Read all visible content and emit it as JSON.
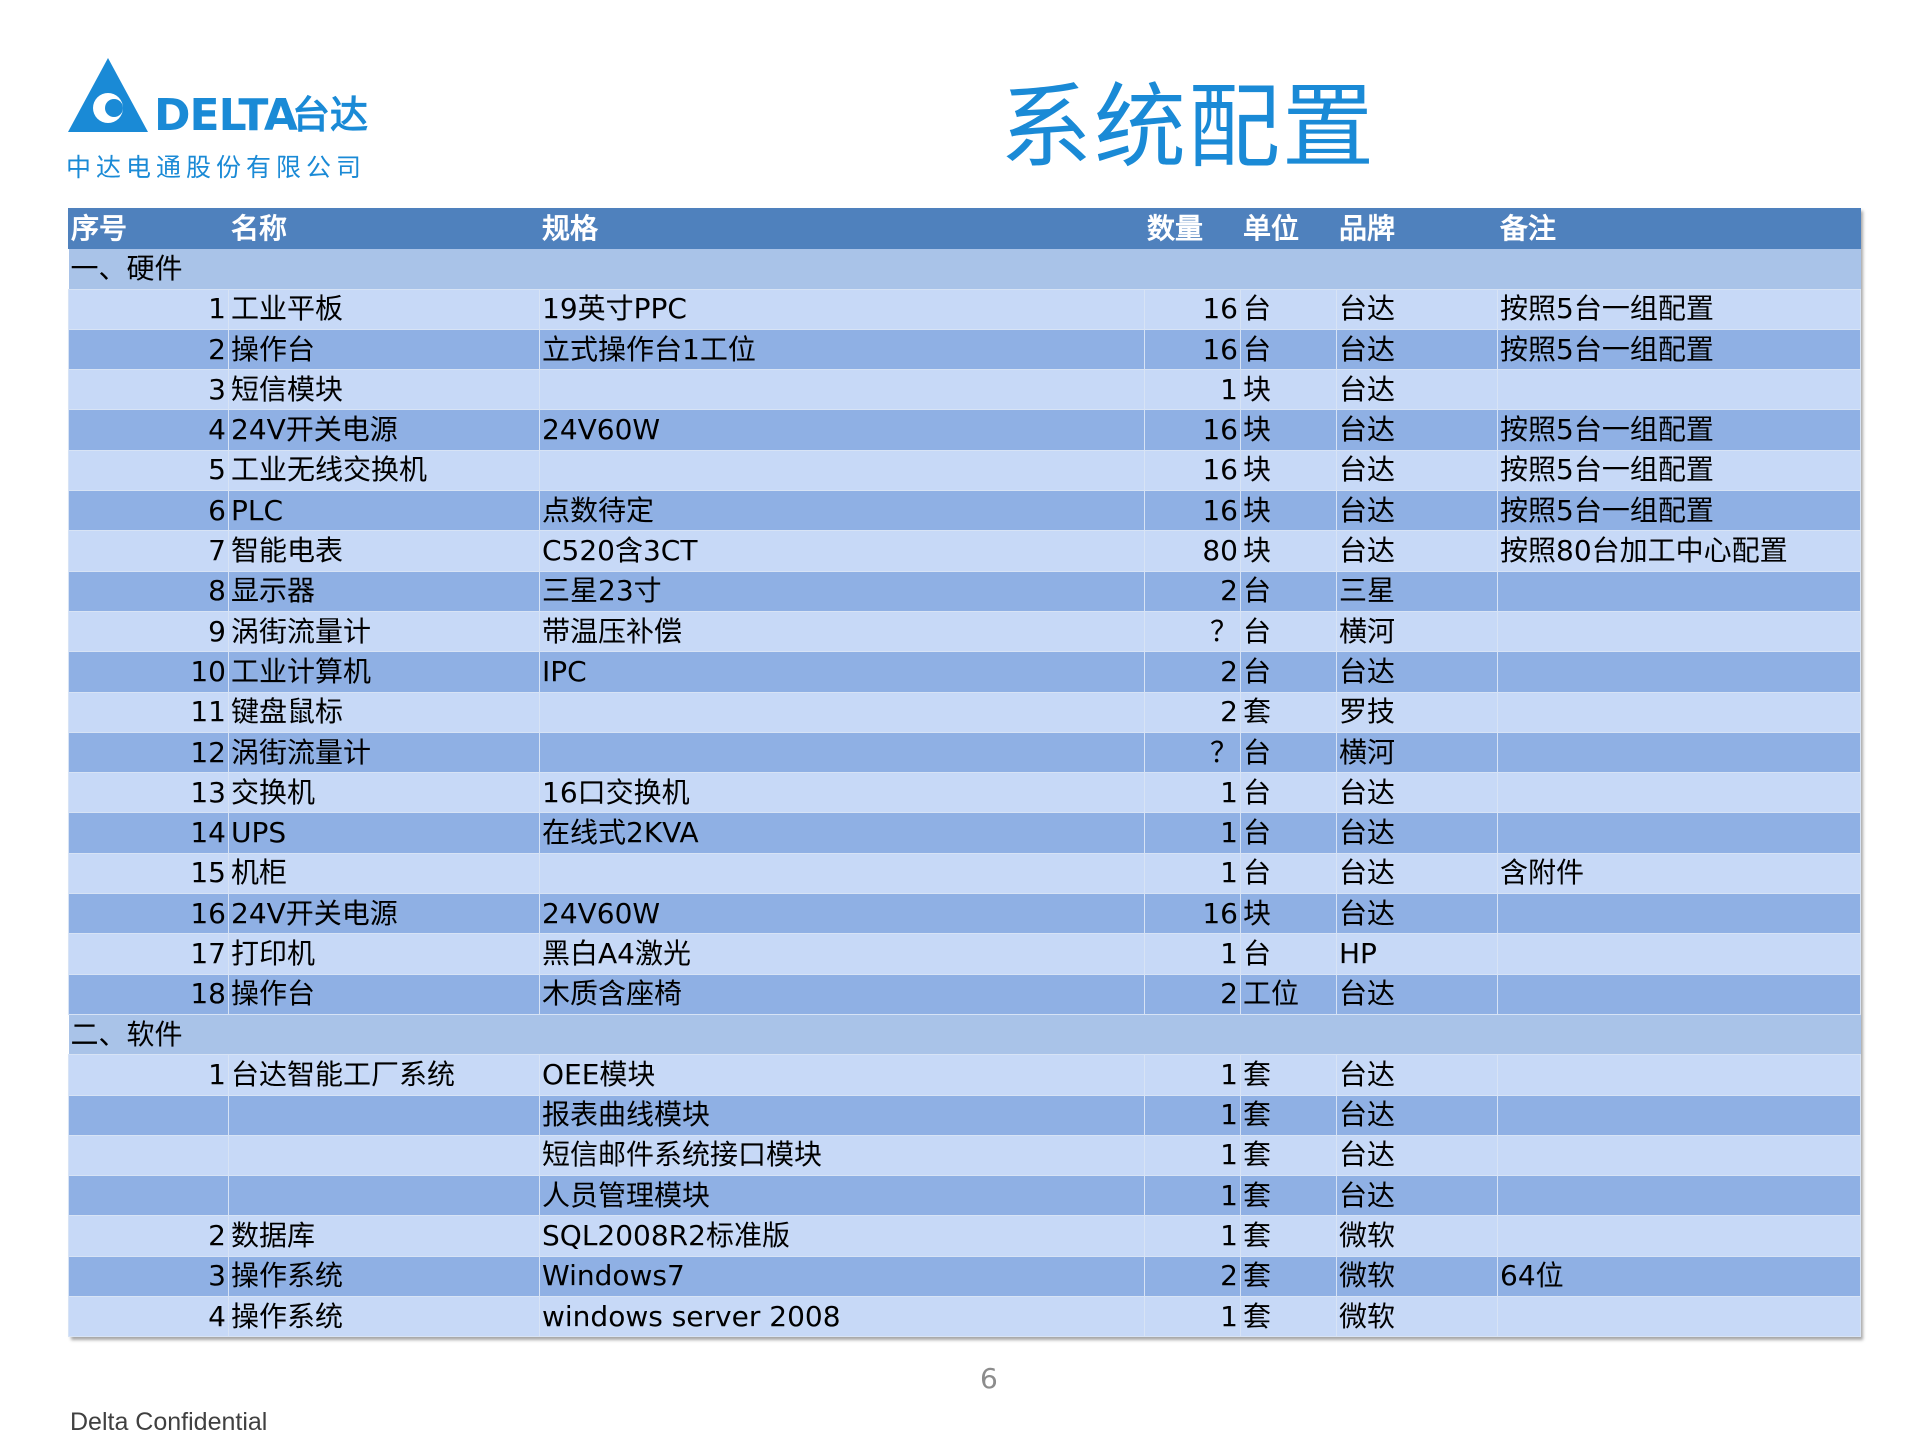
{
  "logo": {
    "brand": "DELTA",
    "brand_cn": "台达",
    "company": "中达电通股份有限公司"
  },
  "title": "系统配置",
  "colors": {
    "accent": "#1a8ad6",
    "header_bg": "#4f81bd",
    "row_light": "#c7d9f7",
    "row_dark": "#8fb0e4",
    "section_bg": "#a9c3e8"
  },
  "table": {
    "headers": [
      "序号",
      "名称",
      "规格",
      "数量",
      "单位",
      "品牌",
      "备注"
    ],
    "sections": [
      {
        "label": "一、硬件",
        "rows": [
          [
            "1",
            "工业平板",
            "19英寸PPC",
            "16",
            "台",
            "台达",
            "按照5台一组配置"
          ],
          [
            "2",
            "操作台",
            "立式操作台1工位",
            "16",
            "台",
            "台达",
            "按照5台一组配置"
          ],
          [
            "3",
            "短信模块",
            "",
            "1",
            "块",
            "台达",
            ""
          ],
          [
            "4",
            "24V开关电源",
            "24V60W",
            "16",
            "块",
            "台达",
            "按照5台一组配置"
          ],
          [
            "5",
            "工业无线交换机",
            "",
            "16",
            "块",
            "台达",
            "按照5台一组配置"
          ],
          [
            "6",
            "PLC",
            "点数待定",
            "16",
            "块",
            "台达",
            "按照5台一组配置"
          ],
          [
            "7",
            "智能电表",
            "C520含3CT",
            "80",
            "块",
            "台达",
            "按照80台加工中心配置"
          ],
          [
            "8",
            "显示器",
            "三星23寸",
            "2",
            "台",
            "三星",
            ""
          ],
          [
            "9",
            "涡街流量计",
            "带温压补偿",
            "？",
            "台",
            "横河",
            ""
          ],
          [
            "10",
            "工业计算机",
            "IPC",
            "2",
            "台",
            "台达",
            ""
          ],
          [
            "11",
            "键盘鼠标",
            "",
            "2",
            "套",
            "罗技",
            ""
          ],
          [
            "12",
            "涡街流量计",
            "",
            "？",
            "台",
            "横河",
            ""
          ],
          [
            "13",
            "交换机",
            "16口交换机",
            "1",
            "台",
            "台达",
            ""
          ],
          [
            "14",
            "UPS",
            "在线式2KVA",
            "1",
            "台",
            "台达",
            ""
          ],
          [
            "15",
            "机柜",
            "",
            "1",
            "台",
            "台达",
            "含附件"
          ],
          [
            "16",
            "24V开关电源",
            "24V60W",
            "16",
            "块",
            "台达",
            ""
          ],
          [
            "17",
            "打印机",
            "黑白A4激光",
            "1",
            "台",
            "HP",
            ""
          ],
          [
            "18",
            "操作台",
            "木质含座椅",
            "2",
            "工位",
            "台达",
            ""
          ]
        ]
      },
      {
        "label": "二、软件",
        "rows": [
          [
            "1",
            "台达智能工厂系统",
            "OEE模块",
            "1",
            "套",
            "台达",
            ""
          ],
          [
            "",
            "",
            "报表曲线模块",
            "1",
            "套",
            "台达",
            ""
          ],
          [
            "",
            "",
            "短信邮件系统接口模块",
            "1",
            "套",
            "台达",
            ""
          ],
          [
            "",
            "",
            "人员管理模块",
            "1",
            "套",
            "台达",
            ""
          ],
          [
            "2",
            "数据库",
            "SQL2008R2标准版",
            "1",
            "套",
            "微软",
            ""
          ],
          [
            "3",
            "操作系统",
            "Windows7",
            "2",
            "套",
            "微软",
            "64位"
          ],
          [
            "4",
            "操作系统",
            "windows server 2008",
            "1",
            "套",
            "微软",
            ""
          ]
        ]
      }
    ]
  },
  "page_number": "6",
  "footer": "Delta Confidential"
}
